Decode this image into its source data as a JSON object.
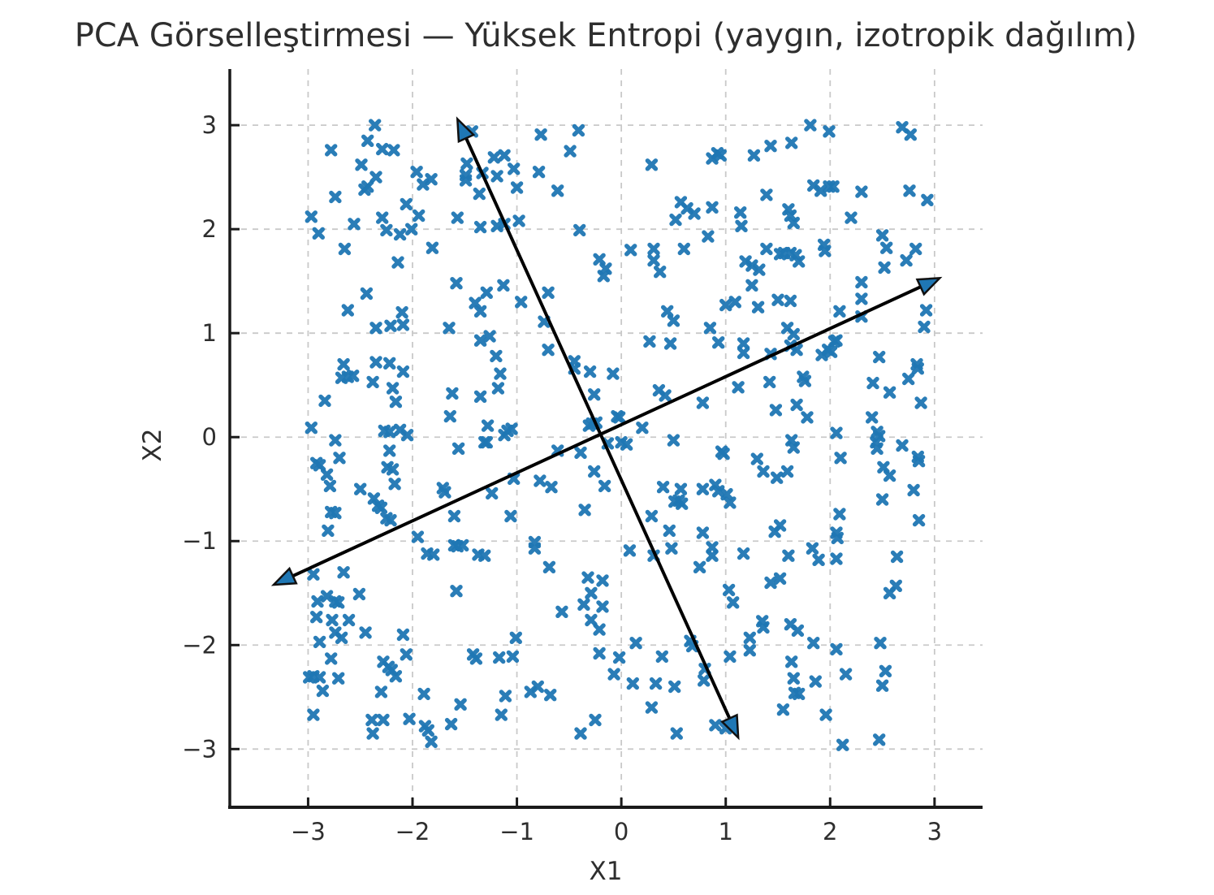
{
  "title": "PCA Görselleştirmesi — Yüksek Entropi (yaygın, izotropik dağılım)",
  "colors": {
    "marker": "#1f77b4",
    "arrow_line": "#000000",
    "arrowhead_fill": "#1f77b4",
    "arrowhead_edge": "#111111",
    "grid": "#c9c9c9",
    "spine": "#1b1b1b",
    "tick": "#1b1b1b",
    "text": "#2e2e2e"
  },
  "chart_data": {
    "type": "scatter",
    "title": "PCA Görselleştirmesi — Yüksek Entropi (yaygın, izotropik dağılım)",
    "xlabel": "X1",
    "ylabel": "X2",
    "xlim": [
      -3.75,
      3.46
    ],
    "ylim": [
      -3.56,
      3.54
    ],
    "x_ticks": [
      -3,
      -2,
      -1,
      0,
      1,
      2,
      3
    ],
    "y_ticks": [
      -3,
      -2,
      -1,
      0,
      1,
      2,
      3
    ],
    "x_tick_labels": [
      "−3",
      "−2",
      "−1",
      "0",
      "1",
      "2",
      "3"
    ],
    "y_tick_labels": [
      "−3",
      "−2",
      "−1",
      "0",
      "1",
      "2",
      "3"
    ],
    "grid": true,
    "grid_style": "dashed",
    "legend": "none",
    "marker": "X",
    "marker_color": "#1f77b4",
    "pca_arrows": [
      {
        "name": "pc1",
        "from": [
          -3.33,
          -1.42
        ],
        "to": [
          3.05,
          1.53
        ],
        "double_headed": true
      },
      {
        "name": "pc2",
        "from": [
          -1.57,
          3.06
        ],
        "to": [
          1.12,
          -2.89
        ],
        "double_headed": true
      }
    ],
    "points": [
      [
        -2.36,
        3.0
      ],
      [
        -2.43,
        2.85
      ],
      [
        -2.29,
        2.77
      ],
      [
        -2.18,
        2.76
      ],
      [
        -2.78,
        2.76
      ],
      [
        -2.49,
        2.62
      ],
      [
        -2.35,
        2.5
      ],
      [
        -2.43,
        2.41
      ],
      [
        -2.46,
        2.38
      ],
      [
        -1.96,
        2.55
      ],
      [
        -1.9,
        2.43
      ],
      [
        -1.82,
        2.48
      ],
      [
        -1.48,
        2.63
      ],
      [
        -1.49,
        2.52
      ],
      [
        -1.49,
        2.47
      ],
      [
        -1.43,
        2.94
      ],
      [
        -1.36,
        2.34
      ],
      [
        -1.35,
        2.02
      ],
      [
        -2.74,
        2.31
      ],
      [
        -2.97,
        2.12
      ],
      [
        -2.9,
        1.96
      ],
      [
        -2.56,
        2.05
      ],
      [
        -2.29,
        2.11
      ],
      [
        -2.25,
        1.99
      ],
      [
        -2.12,
        1.95
      ],
      [
        -2.01,
        2.0
      ],
      [
        -1.94,
        2.13
      ],
      [
        -1.57,
        2.11
      ],
      [
        -2.06,
        2.24
      ],
      [
        -1.81,
        1.82
      ],
      [
        -2.14,
        1.68
      ],
      [
        -2.65,
        1.81
      ],
      [
        -2.44,
        1.38
      ],
      [
        -2.62,
        1.22
      ],
      [
        -1.58,
        1.48
      ],
      [
        -1.4,
        1.29
      ],
      [
        -1.35,
        1.21
      ],
      [
        -2.1,
        1.2
      ],
      [
        -0.77,
        2.91
      ],
      [
        -0.41,
        2.95
      ],
      [
        -0.49,
        2.75
      ],
      [
        -1.22,
        2.69
      ],
      [
        -1.12,
        2.71
      ],
      [
        -1.33,
        2.54
      ],
      [
        -1.03,
        2.58
      ],
      [
        -1.19,
        2.51
      ],
      [
        -0.79,
        2.55
      ],
      [
        -1.0,
        2.4
      ],
      [
        -0.61,
        2.37
      ],
      [
        0.29,
        2.62
      ],
      [
        0.87,
        2.68
      ],
      [
        0.92,
        2.73
      ],
      [
        0.95,
        2.71
      ],
      [
        0.57,
        2.26
      ],
      [
        0.63,
        2.2
      ],
      [
        0.7,
        2.15
      ],
      [
        0.87,
        2.21
      ],
      [
        0.52,
        2.09
      ],
      [
        -1.19,
        2.03
      ],
      [
        -1.12,
        2.05
      ],
      [
        -0.98,
        2.08
      ],
      [
        -0.4,
        1.99
      ],
      [
        0.83,
        1.93
      ],
      [
        0.09,
        1.8
      ],
      [
        0.31,
        1.81
      ],
      [
        0.6,
        1.81
      ],
      [
        0.31,
        1.7
      ],
      [
        -0.21,
        1.71
      ],
      [
        -0.15,
        1.62
      ],
      [
        -0.17,
        1.55
      ],
      [
        0.37,
        1.59
      ],
      [
        -1.13,
        1.46
      ],
      [
        -1.29,
        1.39
      ],
      [
        -0.96,
        1.3
      ],
      [
        -0.7,
        1.39
      ],
      [
        0.44,
        1.21
      ],
      [
        1.0,
        1.27
      ],
      [
        1.81,
        3.0
      ],
      [
        1.99,
        2.94
      ],
      [
        2.69,
        2.98
      ],
      [
        2.77,
        2.91
      ],
      [
        1.43,
        2.8
      ],
      [
        1.63,
        2.83
      ],
      [
        1.27,
        2.71
      ],
      [
        1.84,
        2.42
      ],
      [
        1.91,
        2.37
      ],
      [
        1.99,
        2.41
      ],
      [
        2.03,
        2.41
      ],
      [
        2.3,
        2.36
      ],
      [
        2.76,
        2.37
      ],
      [
        2.93,
        2.28
      ],
      [
        1.39,
        2.33
      ],
      [
        1.14,
        2.16
      ],
      [
        1.15,
        2.03
      ],
      [
        1.6,
        2.19
      ],
      [
        1.62,
        2.13
      ],
      [
        1.65,
        2.06
      ],
      [
        2.2,
        2.11
      ],
      [
        2.5,
        1.94
      ],
      [
        2.54,
        1.82
      ],
      [
        2.82,
        1.81
      ],
      [
        2.73,
        1.7
      ],
      [
        1.39,
        1.81
      ],
      [
        1.52,
        1.76
      ],
      [
        1.56,
        1.77
      ],
      [
        1.62,
        1.77
      ],
      [
        1.67,
        1.75
      ],
      [
        1.7,
        1.69
      ],
      [
        1.19,
        1.69
      ],
      [
        1.25,
        1.65
      ],
      [
        1.32,
        1.61
      ],
      [
        1.94,
        1.85
      ],
      [
        1.95,
        1.79
      ],
      [
        2.52,
        1.63
      ],
      [
        2.3,
        1.49
      ],
      [
        1.25,
        1.46
      ],
      [
        2.3,
        1.33
      ],
      [
        1.5,
        1.32
      ],
      [
        1.62,
        1.31
      ],
      [
        1.09,
        1.3
      ],
      [
        1.31,
        1.25
      ],
      [
        2.92,
        1.22
      ],
      [
        2.09,
        1.21
      ],
      [
        -2.35,
        1.05
      ],
      [
        -2.21,
        1.07
      ],
      [
        -2.09,
        1.08
      ],
      [
        -1.65,
        1.05
      ],
      [
        -1.35,
        0.93
      ],
      [
        -2.66,
        0.7
      ],
      [
        -2.35,
        0.72
      ],
      [
        -2.22,
        0.71
      ],
      [
        -2.68,
        0.57
      ],
      [
        -2.62,
        0.58
      ],
      [
        -2.57,
        0.59
      ],
      [
        -2.09,
        0.63
      ],
      [
        -2.38,
        0.53
      ],
      [
        -2.19,
        0.47
      ],
      [
        -2.16,
        0.34
      ],
      [
        -2.84,
        0.35
      ],
      [
        -1.62,
        0.42
      ],
      [
        -1.35,
        0.39
      ],
      [
        -1.64,
        0.2
      ],
      [
        -2.97,
        0.09
      ],
      [
        -2.27,
        0.06
      ],
      [
        -2.22,
        0.05
      ],
      [
        -2.12,
        0.07
      ],
      [
        -2.05,
        0.02
      ],
      [
        -2.74,
        -0.03
      ],
      [
        -1.56,
        -0.11
      ],
      [
        -2.22,
        -0.13
      ],
      [
        -2.7,
        -0.2
      ],
      [
        -2.92,
        -0.25
      ],
      [
        -2.89,
        -0.27
      ],
      [
        -2.82,
        -0.36
      ],
      [
        -2.79,
        -0.47
      ],
      [
        -2.24,
        -0.29
      ],
      [
        -2.19,
        -0.31
      ],
      [
        -2.17,
        -0.45
      ],
      [
        -2.5,
        -0.5
      ],
      [
        -1.71,
        -0.49
      ],
      [
        -1.69,
        -0.53
      ],
      [
        -2.37,
        -0.59
      ],
      [
        -2.33,
        -0.66
      ],
      [
        -2.3,
        -0.68
      ],
      [
        -2.78,
        -0.72
      ],
      [
        -2.74,
        -0.73
      ],
      [
        -2.25,
        -0.78
      ],
      [
        -2.21,
        -0.8
      ],
      [
        -1.6,
        -0.76
      ],
      [
        -2.81,
        -0.9
      ],
      [
        -1.95,
        -0.96
      ],
      [
        -1.6,
        -1.04
      ],
      [
        -1.57,
        -1.05
      ],
      [
        -1.52,
        -1.04
      ],
      [
        -1.86,
        -1.12
      ],
      [
        -1.8,
        -1.13
      ],
      [
        -1.37,
        -1.13
      ],
      [
        -1.26,
        0.97
      ],
      [
        -0.74,
        1.11
      ],
      [
        -0.7,
        0.84
      ],
      [
        -1.2,
        0.78
      ],
      [
        -1.16,
        0.61
      ],
      [
        -1.18,
        0.47
      ],
      [
        -0.45,
        0.73
      ],
      [
        -0.45,
        0.66
      ],
      [
        -0.3,
        0.63
      ],
      [
        -0.08,
        0.61
      ],
      [
        -0.26,
        0.41
      ],
      [
        0.36,
        0.45
      ],
      [
        0.42,
        0.4
      ],
      [
        0.27,
        0.92
      ],
      [
        0.47,
        0.9
      ],
      [
        0.5,
        1.12
      ],
      [
        0.85,
        1.05
      ],
      [
        0.93,
        0.91
      ],
      [
        0.78,
        0.33
      ],
      [
        0.2,
        0.09
      ],
      [
        -0.04,
        0.2
      ],
      [
        -0.02,
        0.19
      ],
      [
        -0.31,
        0.11
      ],
      [
        -0.28,
        0.13
      ],
      [
        -0.24,
        0.14
      ],
      [
        -1.28,
        0.11
      ],
      [
        -1.09,
        0.06
      ],
      [
        -1.05,
        0.08
      ],
      [
        -1.12,
        0.02
      ],
      [
        -1.31,
        -0.05
      ],
      [
        -1.29,
        -0.05
      ],
      [
        -0.13,
        -0.06
      ],
      [
        0.0,
        -0.05
      ],
      [
        0.05,
        -0.07
      ],
      [
        0.5,
        -0.03
      ],
      [
        -0.61,
        -0.13
      ],
      [
        -0.39,
        -0.15
      ],
      [
        0.96,
        -0.14
      ],
      [
        0.98,
        -0.16
      ],
      [
        -0.26,
        -0.33
      ],
      [
        -1.03,
        -0.4
      ],
      [
        -0.78,
        -0.42
      ],
      [
        -0.67,
        -0.48
      ],
      [
        -0.16,
        -0.47
      ],
      [
        -1.24,
        -0.54
      ],
      [
        0.4,
        -0.48
      ],
      [
        0.57,
        -0.5
      ],
      [
        0.78,
        -0.5
      ],
      [
        0.9,
        -0.46
      ],
      [
        0.93,
        -0.52
      ],
      [
        0.55,
        -0.61
      ],
      [
        0.58,
        -0.64
      ],
      [
        0.51,
        -0.62
      ],
      [
        1.01,
        -0.55
      ],
      [
        1.04,
        -0.63
      ],
      [
        -0.35,
        -0.7
      ],
      [
        -1.06,
        -0.76
      ],
      [
        0.29,
        -0.76
      ],
      [
        0.46,
        -0.9
      ],
      [
        0.78,
        -0.92
      ],
      [
        -0.83,
        -1.01
      ],
      [
        -0.83,
        -1.07
      ],
      [
        0.08,
        -1.09
      ],
      [
        0.31,
        -1.14
      ],
      [
        0.48,
        -1.07
      ],
      [
        0.87,
        -1.06
      ],
      [
        0.87,
        -1.14
      ],
      [
        -1.31,
        -1.14
      ],
      [
        1.17,
        0.9
      ],
      [
        1.17,
        0.81
      ],
      [
        1.43,
        0.8
      ],
      [
        1.59,
        1.05
      ],
      [
        1.65,
        0.99
      ],
      [
        1.62,
        0.88
      ],
      [
        1.68,
        0.84
      ],
      [
        1.92,
        0.79
      ],
      [
        1.98,
        0.84
      ],
      [
        2.01,
        0.82
      ],
      [
        2.04,
        0.92
      ],
      [
        2.06,
        0.93
      ],
      [
        2.3,
        1.16
      ],
      [
        2.9,
        1.06
      ],
      [
        2.47,
        0.77
      ],
      [
        2.83,
        0.7
      ],
      [
        2.84,
        0.66
      ],
      [
        2.75,
        0.56
      ],
      [
        2.41,
        0.52
      ],
      [
        2.57,
        0.43
      ],
      [
        2.87,
        0.33
      ],
      [
        1.42,
        0.53
      ],
      [
        1.74,
        0.58
      ],
      [
        1.76,
        0.54
      ],
      [
        1.12,
        0.48
      ],
      [
        1.48,
        0.26
      ],
      [
        1.68,
        0.31
      ],
      [
        1.78,
        0.19
      ],
      [
        2.4,
        0.19
      ],
      [
        2.06,
        0.04
      ],
      [
        2.45,
        0.05
      ],
      [
        2.47,
        0.01
      ],
      [
        2.44,
        -0.05
      ],
      [
        2.45,
        -0.11
      ],
      [
        2.69,
        -0.08
      ],
      [
        1.63,
        -0.03
      ],
      [
        1.65,
        -0.1
      ],
      [
        1.3,
        -0.21
      ],
      [
        1.36,
        -0.33
      ],
      [
        1.49,
        -0.39
      ],
      [
        1.59,
        -0.33
      ],
      [
        2.1,
        -0.2
      ],
      [
        2.84,
        -0.19
      ],
      [
        2.85,
        -0.23
      ],
      [
        2.51,
        -0.29
      ],
      [
        2.57,
        -0.37
      ],
      [
        2.8,
        -0.51
      ],
      [
        2.5,
        -0.6
      ],
      [
        2.09,
        -0.74
      ],
      [
        2.85,
        -0.8
      ],
      [
        1.47,
        -0.91
      ],
      [
        1.52,
        -0.85
      ],
      [
        2.06,
        -0.92
      ],
      [
        2.07,
        -0.97
      ],
      [
        1.17,
        -1.12
      ],
      [
        1.6,
        -1.14
      ],
      [
        1.83,
        -1.07
      ],
      [
        1.89,
        -1.18
      ],
      [
        2.06,
        -1.17
      ],
      [
        2.64,
        -1.15
      ],
      [
        -2.95,
        -1.32
      ],
      [
        -2.66,
        -1.3
      ],
      [
        -1.58,
        -1.48
      ],
      [
        -2.51,
        -1.51
      ],
      [
        -2.82,
        -1.53
      ],
      [
        -2.91,
        -1.58
      ],
      [
        -2.74,
        -1.58
      ],
      [
        -2.71,
        -1.59
      ],
      [
        -2.92,
        -1.73
      ],
      [
        -2.77,
        -1.76
      ],
      [
        -2.61,
        -1.76
      ],
      [
        -2.45,
        -1.88
      ],
      [
        -2.74,
        -1.88
      ],
      [
        -2.68,
        -1.93
      ],
      [
        -2.89,
        -1.97
      ],
      [
        -2.09,
        -1.9
      ],
      [
        -2.06,
        -2.09
      ],
      [
        -2.78,
        -2.13
      ],
      [
        -2.28,
        -2.16
      ],
      [
        -2.23,
        -2.21
      ],
      [
        -2.2,
        -2.24
      ],
      [
        -2.16,
        -2.3
      ],
      [
        -2.99,
        -2.31
      ],
      [
        -2.95,
        -2.3
      ],
      [
        -2.89,
        -2.31
      ],
      [
        -2.71,
        -2.32
      ],
      [
        -2.86,
        -2.44
      ],
      [
        -2.3,
        -2.45
      ],
      [
        -2.95,
        -2.67
      ],
      [
        -1.54,
        -2.57
      ],
      [
        -1.89,
        -2.47
      ],
      [
        -2.39,
        -2.72
      ],
      [
        -2.28,
        -2.72
      ],
      [
        -2.38,
        -2.85
      ],
      [
        -2.03,
        -2.71
      ],
      [
        -1.88,
        -2.78
      ],
      [
        -1.85,
        -2.82
      ],
      [
        -1.82,
        -2.93
      ],
      [
        -1.63,
        -2.76
      ],
      [
        -1.42,
        -2.09
      ],
      [
        -1.39,
        -2.13
      ],
      [
        -0.69,
        -1.25
      ],
      [
        -0.32,
        -1.35
      ],
      [
        -0.18,
        -1.38
      ],
      [
        -0.29,
        -1.5
      ],
      [
        -0.36,
        -1.61
      ],
      [
        -0.18,
        -1.63
      ],
      [
        -0.57,
        -1.68
      ],
      [
        -0.29,
        -1.76
      ],
      [
        -0.21,
        -1.85
      ],
      [
        -1.01,
        -1.93
      ],
      [
        -1.17,
        -2.12
      ],
      [
        -1.04,
        -2.11
      ],
      [
        -0.21,
        -2.08
      ],
      [
        -0.02,
        -2.12
      ],
      [
        0.14,
        -1.98
      ],
      [
        0.39,
        -2.11
      ],
      [
        0.66,
        -1.96
      ],
      [
        0.68,
        -2.01
      ],
      [
        -0.07,
        -2.28
      ],
      [
        0.11,
        -2.37
      ],
      [
        0.33,
        -2.37
      ],
      [
        0.51,
        -2.4
      ],
      [
        0.8,
        -2.23
      ],
      [
        0.79,
        -2.34
      ],
      [
        -1.11,
        -2.49
      ],
      [
        -0.87,
        -2.45
      ],
      [
        -0.8,
        -2.4
      ],
      [
        -0.68,
        -2.48
      ],
      [
        -1.15,
        -2.67
      ],
      [
        0.29,
        -2.6
      ],
      [
        -0.25,
        -2.72
      ],
      [
        -0.39,
        -2.85
      ],
      [
        0.53,
        -2.85
      ],
      [
        0.9,
        -2.77
      ],
      [
        1.0,
        -2.8
      ],
      [
        0.75,
        -1.25
      ],
      [
        1.43,
        -1.4
      ],
      [
        1.52,
        -1.36
      ],
      [
        1.03,
        -1.47
      ],
      [
        1.07,
        -1.59
      ],
      [
        1.35,
        -1.77
      ],
      [
        1.36,
        -1.83
      ],
      [
        1.62,
        -1.8
      ],
      [
        1.69,
        -1.86
      ],
      [
        1.23,
        -1.93
      ],
      [
        1.23,
        -2.05
      ],
      [
        1.04,
        -2.11
      ],
      [
        1.84,
        -1.98
      ],
      [
        2.06,
        -2.04
      ],
      [
        2.48,
        -1.98
      ],
      [
        1.63,
        -2.16
      ],
      [
        1.65,
        -2.32
      ],
      [
        1.86,
        -2.35
      ],
      [
        2.15,
        -2.28
      ],
      [
        2.53,
        -2.25
      ],
      [
        2.5,
        -2.39
      ],
      [
        1.66,
        -2.46
      ],
      [
        1.7,
        -2.47
      ],
      [
        1.55,
        -2.62
      ],
      [
        1.96,
        -2.67
      ],
      [
        2.47,
        -2.91
      ],
      [
        2.12,
        -2.96
      ],
      [
        2.57,
        -1.5
      ],
      [
        2.63,
        -1.43
      ]
    ]
  }
}
